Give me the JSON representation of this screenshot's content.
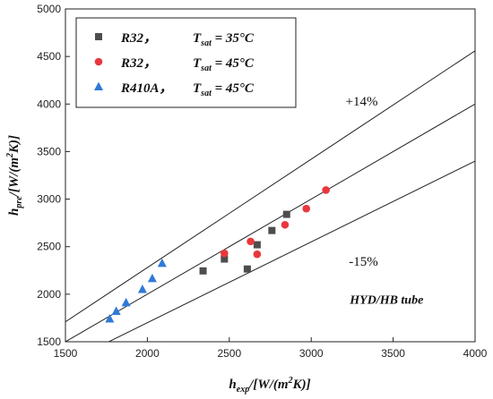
{
  "chart_data": {
    "type": "scatter",
    "xlabel": "h_exp/[W/(m²K)]",
    "ylabel": "h_pre/[W/(m²K)]",
    "xlim": [
      1500,
      4000
    ],
    "ylim": [
      1500,
      5000
    ],
    "x_ticks": [
      "1500",
      "2000",
      "2500",
      "3000",
      "3500",
      "4000"
    ],
    "y_ticks": [
      "1500",
      "2000",
      "2500",
      "3000",
      "3500",
      "4000",
      "4500",
      "5000"
    ],
    "grid": false,
    "legend_position": "top-left",
    "series": [
      {
        "name": "R32， T_sat = 35°C",
        "name_parts": {
          "fluid": "R32，",
          "var": "T",
          "sub": "sat",
          "value": " = 35°C"
        },
        "marker": "square",
        "color": "#4d4d4d",
        "points": [
          [
            2340,
            2245
          ],
          [
            2470,
            2370
          ],
          [
            2610,
            2265
          ],
          [
            2670,
            2520
          ],
          [
            2760,
            2670
          ],
          [
            2850,
            2840
          ]
        ]
      },
      {
        "name": "R32， T_sat = 45°C",
        "name_parts": {
          "fluid": "R32，",
          "var": "T",
          "sub": "sat",
          "value": " = 45°C"
        },
        "marker": "circle",
        "color": "#e8383d",
        "points": [
          [
            2470,
            2430
          ],
          [
            2630,
            2555
          ],
          [
            2670,
            2420
          ],
          [
            2840,
            2730
          ],
          [
            2970,
            2900
          ],
          [
            3090,
            3095
          ]
        ]
      },
      {
        "name": "R410A， T_sat = 45°C",
        "name_parts": {
          "fluid": "R410A，",
          "var": "T",
          "sub": "sat",
          "value": " = 45°C"
        },
        "marker": "triangle",
        "color": "#2f7ad6",
        "points": [
          [
            1770,
            1740
          ],
          [
            1810,
            1820
          ],
          [
            1870,
            1910
          ],
          [
            1970,
            2050
          ],
          [
            2030,
            2165
          ],
          [
            2090,
            2325
          ]
        ]
      }
    ],
    "reference_lines": [
      {
        "label": "+14%",
        "slope": 1.14,
        "label_x": 3210,
        "label_y": 3985
      },
      {
        "label": "",
        "slope": 1.0
      },
      {
        "label": "-15%",
        "slope": 0.85,
        "label_x": 3230,
        "label_y": 2300
      }
    ],
    "annotations": [
      {
        "text": "HYD/HB tube",
        "x": 3460,
        "y": 1900
      }
    ]
  }
}
